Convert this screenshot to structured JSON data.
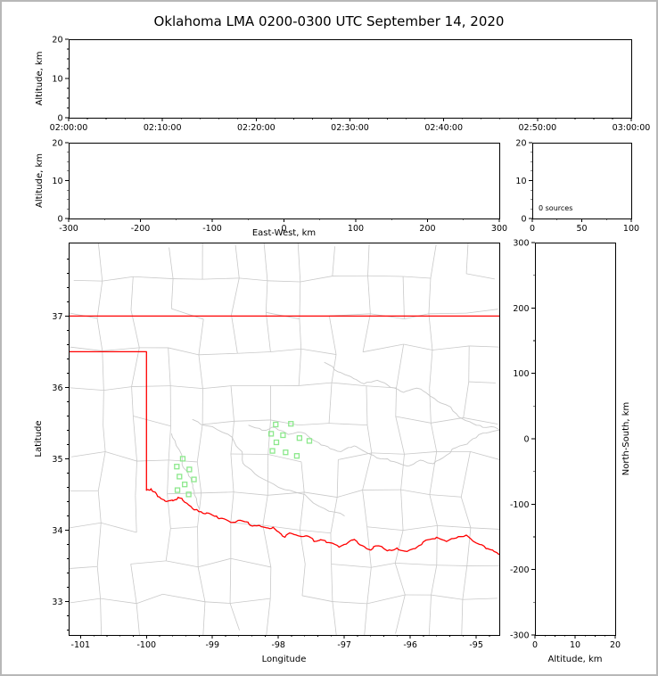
{
  "title": "Oklahoma LMA 0200-0300 UTC September 14, 2020",
  "colors": {
    "state_border": "#ff0000",
    "county_line": "#c9c9c9",
    "river_line": "#c9c9c9",
    "station_marker": "#8ce88c",
    "axis": "#000000",
    "figure_border": "#b8b8b8",
    "background": "#ffffff"
  },
  "chart_data": [
    {
      "id": "time_height_panel",
      "type": "scatter",
      "xlabel": "",
      "ylabel": "Altitude, km",
      "xticks": [
        "02:00:00",
        "02:10:00",
        "02:20:00",
        "02:30:00",
        "02:40:00",
        "02:50:00",
        "03:00:00"
      ],
      "ylim": [
        0,
        20
      ],
      "yticks": [
        0,
        10,
        20
      ],
      "points": []
    },
    {
      "id": "east_west_height_panel",
      "type": "scatter",
      "xlabel": "East-West, km",
      "ylabel": "Altitude, km",
      "xlim": [
        -300,
        300
      ],
      "xticks": [
        -300,
        -200,
        -100,
        0,
        100,
        200,
        300
      ],
      "ylim": [
        0,
        20
      ],
      "yticks": [
        0,
        10,
        20
      ],
      "points": []
    },
    {
      "id": "altitude_histogram_panel",
      "type": "line",
      "annotation": "0 sources",
      "xlim": [
        0,
        100
      ],
      "xticks": [
        0,
        50,
        100
      ],
      "ylim": [
        0,
        20
      ],
      "yticks": [
        0,
        10,
        20
      ],
      "points": []
    },
    {
      "id": "plan_view_map_panel",
      "type": "scatter",
      "xlabel": "Longitude",
      "ylabel": "Latitude",
      "xlim": [
        -101.18,
        -94.65
      ],
      "xticks": [
        -101,
        -100,
        -99,
        -98,
        -97,
        -96,
        -95
      ],
      "ylim": [
        32.53,
        38.03
      ],
      "yticks": [
        33,
        34,
        35,
        36,
        37
      ],
      "stations_lon_lat": [
        [
          -99.45,
          35.0
        ],
        [
          -99.54,
          34.89
        ],
        [
          -99.35,
          34.85
        ],
        [
          -99.5,
          34.75
        ],
        [
          -99.28,
          34.71
        ],
        [
          -99.42,
          34.64
        ],
        [
          -99.53,
          34.56
        ],
        [
          -99.36,
          34.5
        ],
        [
          -98.04,
          35.48
        ],
        [
          -97.81,
          35.49
        ],
        [
          -98.11,
          35.35
        ],
        [
          -97.93,
          35.33
        ],
        [
          -97.68,
          35.29
        ],
        [
          -98.03,
          35.23
        ],
        [
          -97.53,
          35.25
        ],
        [
          -98.09,
          35.11
        ],
        [
          -97.89,
          35.09
        ],
        [
          -97.72,
          35.04
        ]
      ],
      "state_border": {
        "north_37": [
          [
            -101.18,
            37.0
          ],
          [
            -94.65,
            37.0
          ]
        ],
        "panhandle": [
          [
            -101.18,
            36.5
          ],
          [
            -100.0,
            36.5
          ],
          [
            -100.0,
            34.56
          ]
        ],
        "red_river": [
          [
            -100.0,
            34.56
          ],
          [
            -99.93,
            34.58
          ],
          [
            -99.85,
            34.51
          ],
          [
            -99.78,
            34.44
          ],
          [
            -99.7,
            34.4
          ],
          [
            -99.6,
            34.41
          ],
          [
            -99.52,
            34.46
          ],
          [
            -99.42,
            34.39
          ],
          [
            -99.3,
            34.3
          ],
          [
            -99.21,
            34.26
          ],
          [
            -99.1,
            34.23
          ],
          [
            -99.0,
            34.21
          ],
          [
            -98.9,
            34.16
          ],
          [
            -98.78,
            34.14
          ],
          [
            -98.65,
            34.11
          ],
          [
            -98.55,
            34.13
          ],
          [
            -98.45,
            34.09
          ],
          [
            -98.33,
            34.06
          ],
          [
            -98.17,
            34.03
          ],
          [
            -98.08,
            34.04
          ],
          [
            -97.98,
            33.96
          ],
          [
            -97.9,
            33.9
          ],
          [
            -97.83,
            33.96
          ],
          [
            -97.7,
            33.92
          ],
          [
            -97.58,
            33.92
          ],
          [
            -97.46,
            33.84
          ],
          [
            -97.33,
            33.86
          ],
          [
            -97.2,
            33.82
          ],
          [
            -97.08,
            33.76
          ],
          [
            -96.95,
            33.82
          ],
          [
            -96.85,
            33.87
          ],
          [
            -96.72,
            33.78
          ],
          [
            -96.6,
            33.72
          ],
          [
            -96.48,
            33.78
          ],
          [
            -96.35,
            33.71
          ],
          [
            -96.2,
            33.75
          ],
          [
            -96.05,
            33.7
          ],
          [
            -95.9,
            33.76
          ],
          [
            -95.76,
            33.86
          ],
          [
            -95.6,
            33.9
          ],
          [
            -95.45,
            33.84
          ],
          [
            -95.3,
            33.89
          ],
          [
            -95.15,
            33.93
          ],
          [
            -95.0,
            33.82
          ],
          [
            -94.85,
            33.74
          ],
          [
            -94.75,
            33.72
          ],
          [
            -94.65,
            33.66
          ]
        ]
      },
      "rivers": [
        [
          [
            -98.45,
            35.47
          ],
          [
            -98.25,
            35.4
          ],
          [
            -98.05,
            35.44
          ],
          [
            -97.85,
            35.34
          ],
          [
            -97.65,
            35.37
          ],
          [
            -97.45,
            35.25
          ],
          [
            -97.25,
            35.17
          ],
          [
            -97.05,
            35.1
          ],
          [
            -96.85,
            35.18
          ],
          [
            -96.65,
            35.08
          ],
          [
            -96.45,
            35.0
          ],
          [
            -96.25,
            34.96
          ],
          [
            -96.05,
            34.9
          ],
          [
            -95.85,
            34.98
          ],
          [
            -95.65,
            34.93
          ],
          [
            -95.45,
            35.05
          ],
          [
            -95.25,
            35.18
          ],
          [
            -95.05,
            35.28
          ],
          [
            -94.85,
            35.36
          ],
          [
            -94.65,
            35.4
          ]
        ],
        [
          [
            -97.3,
            36.35
          ],
          [
            -97.1,
            36.22
          ],
          [
            -96.9,
            36.15
          ],
          [
            -96.7,
            36.05
          ],
          [
            -96.5,
            36.1
          ],
          [
            -96.3,
            36.0
          ],
          [
            -96.1,
            35.93
          ],
          [
            -95.9,
            35.99
          ],
          [
            -95.7,
            35.88
          ],
          [
            -95.5,
            35.77
          ],
          [
            -95.3,
            35.63
          ],
          [
            -95.1,
            35.52
          ],
          [
            -94.9,
            35.44
          ],
          [
            -94.65,
            35.41
          ]
        ],
        [
          [
            -99.62,
            35.35
          ],
          [
            -99.5,
            35.12
          ],
          [
            -99.46,
            34.92
          ],
          [
            -99.36,
            34.76
          ],
          [
            -99.3,
            34.6
          ],
          [
            -99.24,
            34.44
          ],
          [
            -99.2,
            34.3
          ]
        ],
        [
          [
            -99.3,
            35.55
          ],
          [
            -99.0,
            35.45
          ],
          [
            -98.7,
            35.3
          ],
          [
            -98.55,
            35.1
          ],
          [
            -98.5,
            34.9
          ],
          [
            -98.3,
            34.75
          ],
          [
            -98.0,
            34.6
          ],
          [
            -97.6,
            34.5
          ],
          [
            -97.3,
            34.3
          ],
          [
            -97.0,
            34.2
          ]
        ]
      ],
      "points": []
    },
    {
      "id": "north_south_height_panel",
      "type": "scatter",
      "xlabel": "Altitude, km",
      "ylabel": "North-South, km",
      "xlim": [
        0,
        20
      ],
      "xticks": [
        0,
        10,
        20
      ],
      "ylim": [
        -300,
        300
      ],
      "yticks": [
        -300,
        -200,
        -100,
        0,
        100,
        200,
        300
      ],
      "points": []
    }
  ]
}
